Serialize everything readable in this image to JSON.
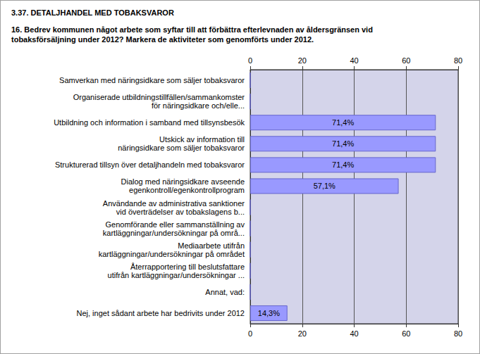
{
  "chart_data": {
    "type": "bar",
    "orientation": "horizontal",
    "title": "3.37. DETALJHANDEL MED TOBAKSVAROR",
    "subtitle": "16. Bedrev kommunen något arbete som syftar till att förbättra efterlevnaden av åldersgränsen vid\ntobaksförsäljning under 2012? Markera de aktiviteter som genomförts under 2012.",
    "categories": [
      "Samverkan med näringsidkare som säljer tobaksvaror",
      "Organiserade utbildningstillfällen/sammankomster\nför näringsidkare och/elle...",
      "Utbildning och information i samband med tillsynsbesök",
      "Utskick av information till\nnäringsidkare som säljer tobaksvaror",
      "Strukturerad tillsyn över detaljhandeln med tobaksvaror",
      "Dialog med näringsidkare avseende\negenkontroll/egenkontrollprogram",
      "Användande av administrativa sanktioner\nvid överträdelser av tobakslagens b...",
      "Genomförande eller sammanställning av\nkartläggningar/undersökningar på områ...",
      "Mediaarbete utifrån\nkartläggningar/undersökningar på området",
      "Återrapportering till beslutsfattare\nutifrån kartläggningar/undersökningar ...",
      "Annat, vad:",
      "Nej, inget sådant arbete har bedrivits under 2012"
    ],
    "values": [
      0,
      0,
      71.4,
      71.4,
      71.4,
      57.1,
      0,
      0,
      0,
      0,
      0,
      14.3
    ],
    "value_labels": [
      null,
      null,
      "71,4%",
      "71,4%",
      "71,4%",
      "57,1%",
      null,
      null,
      null,
      null,
      null,
      "14,3%"
    ],
    "data_labels": true,
    "color": "#9999ff",
    "xlim": [
      0,
      80
    ],
    "xticks": [
      0,
      20,
      40,
      60,
      80
    ],
    "grid": true
  }
}
